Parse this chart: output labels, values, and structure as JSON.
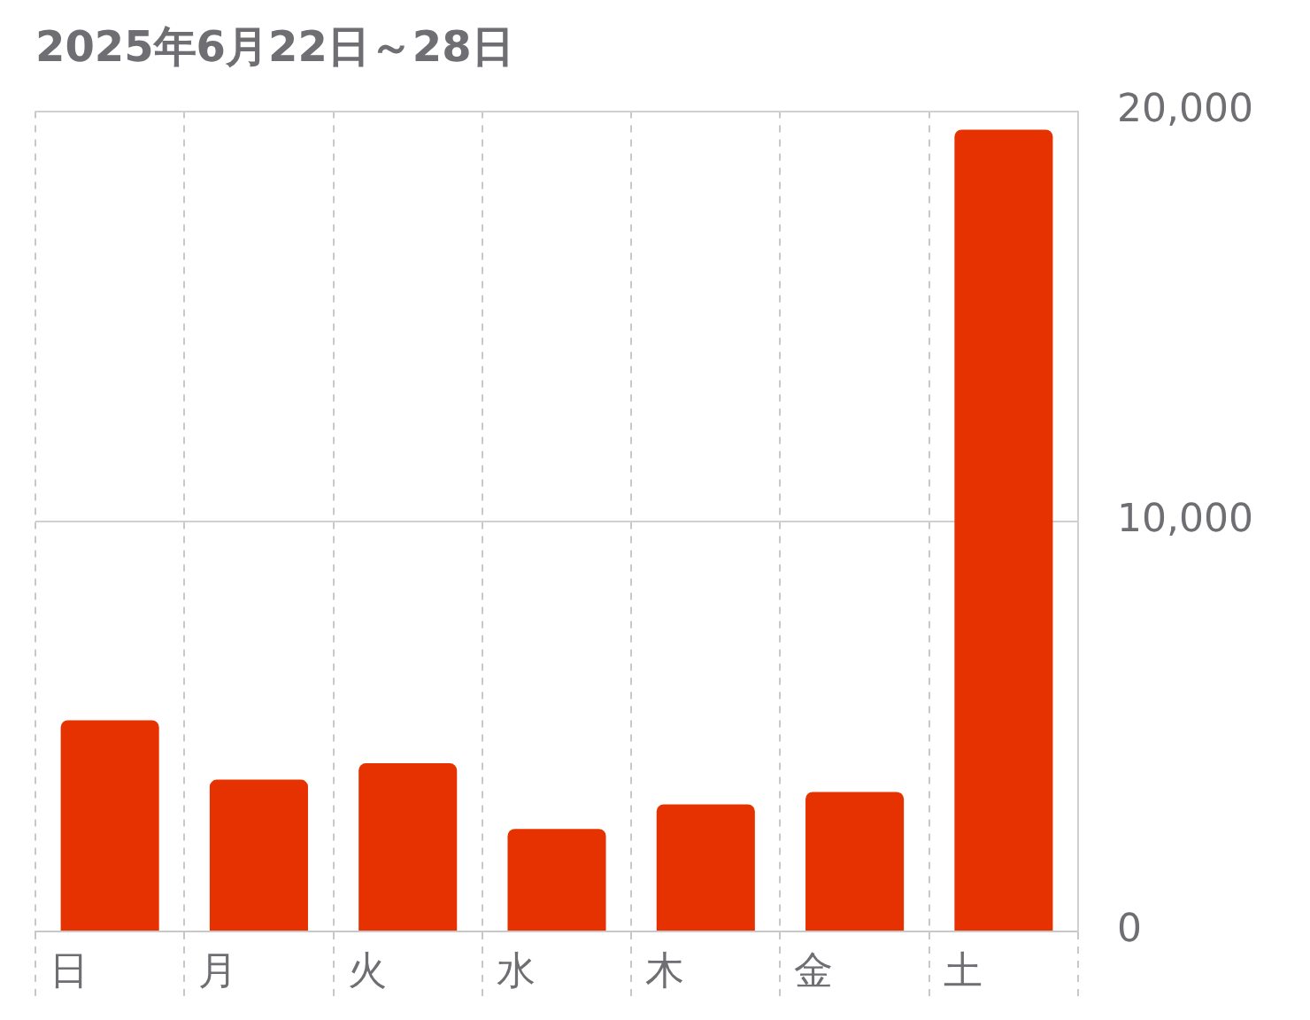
{
  "chart_data": {
    "type": "bar",
    "title": "2025年6月22日～28日",
    "categories": [
      "日",
      "月",
      "火",
      "水",
      "木",
      "金",
      "土"
    ],
    "values": [
      5150,
      3700,
      4100,
      2500,
      3100,
      3400,
      19550
    ],
    "color": "#e53200",
    "ylim": [
      0,
      20000
    ],
    "yticks": [
      0,
      {
        "value": 10000,
        "label": "10,000"
      },
      {
        "value": 20000,
        "label": "20,000"
      }
    ],
    "grid": true
  }
}
